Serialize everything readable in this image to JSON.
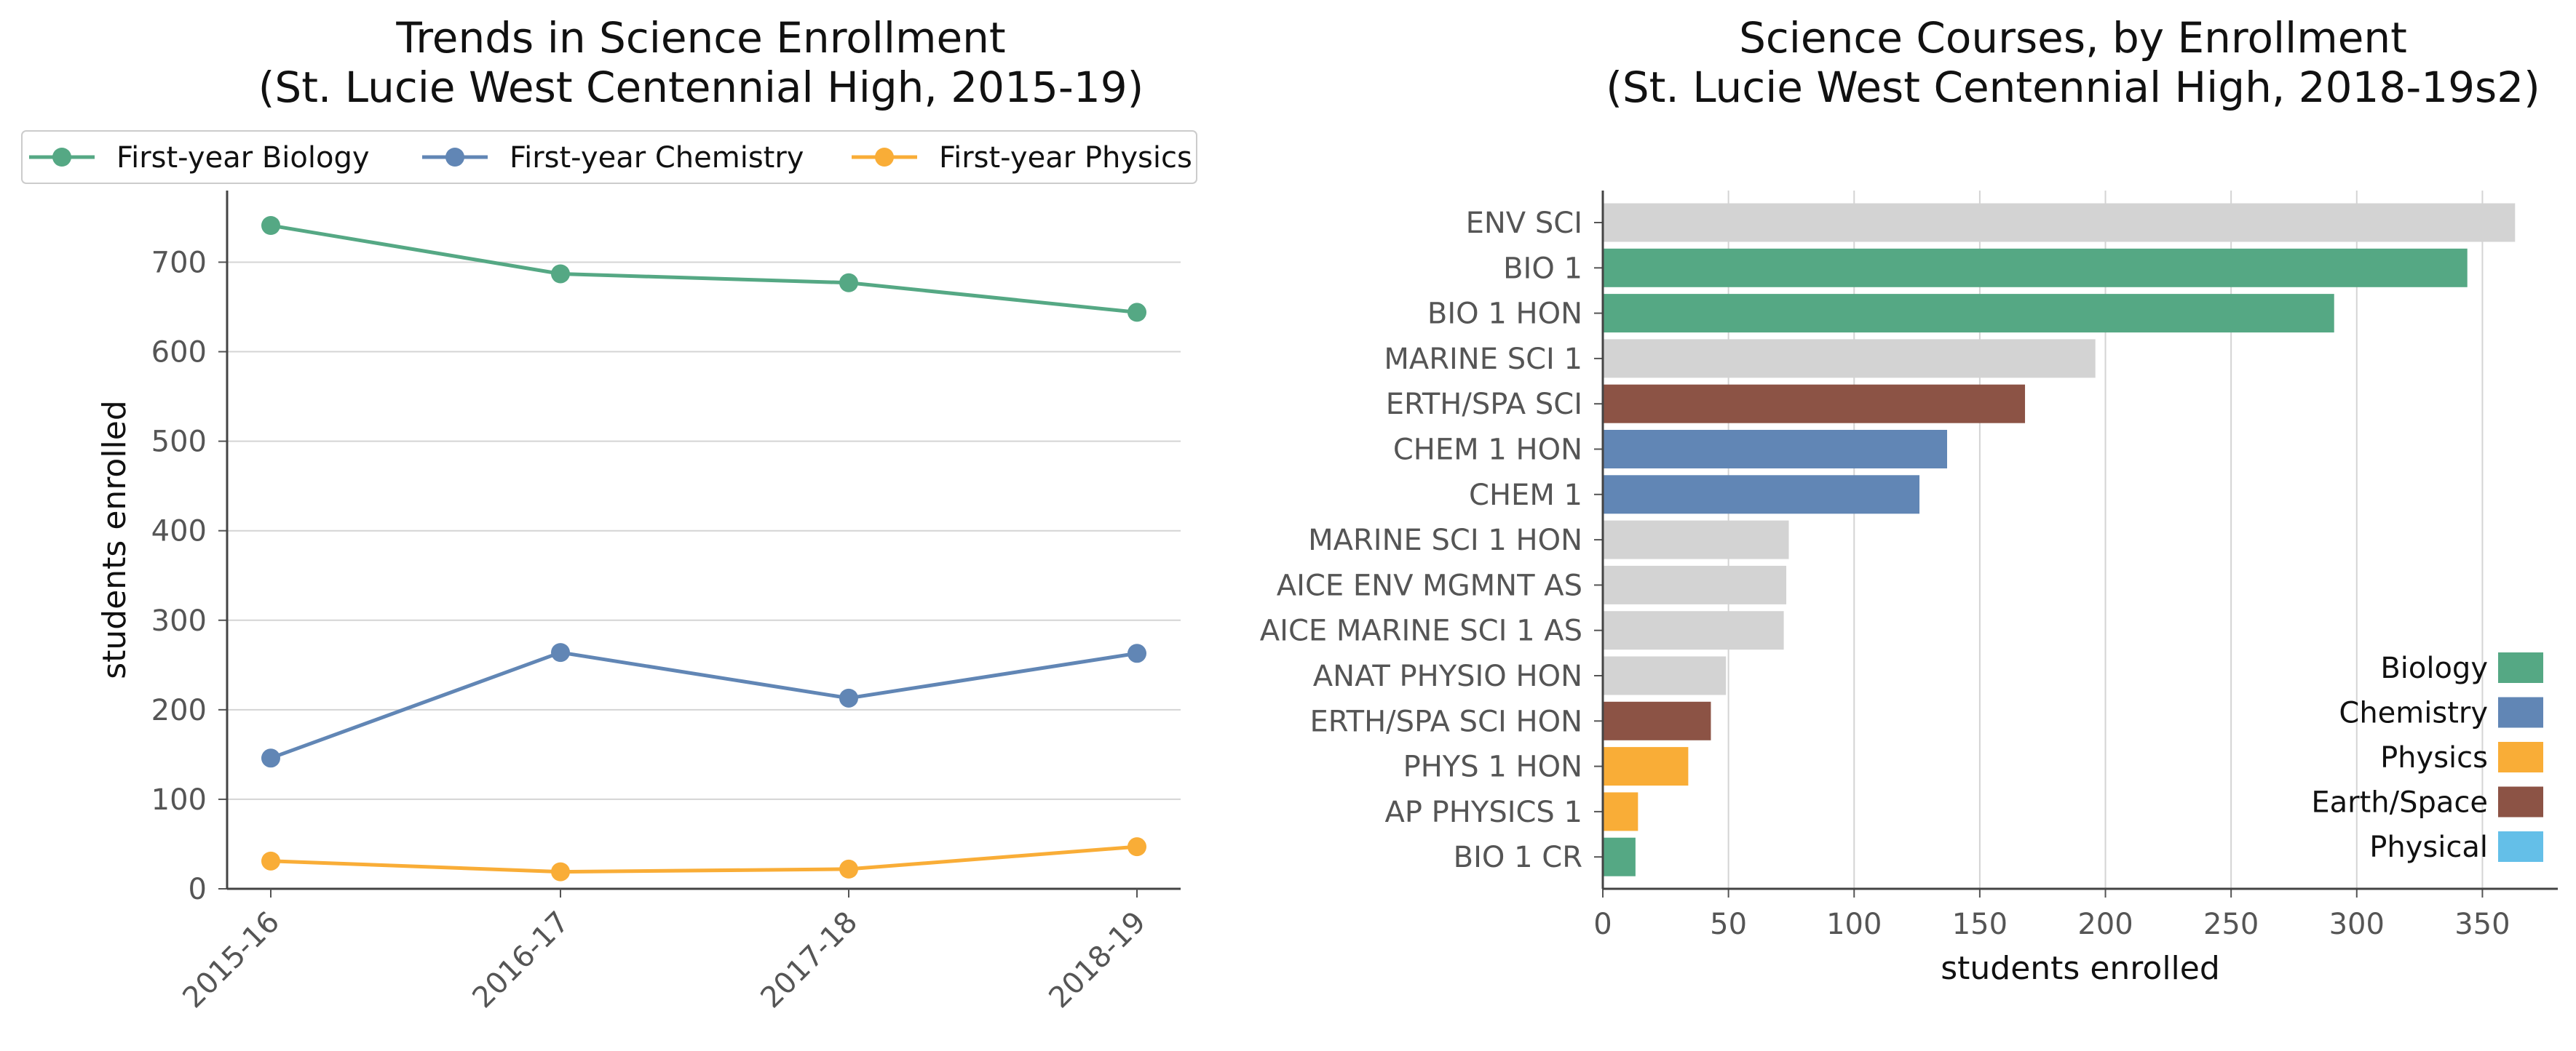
{
  "chart_data": [
    {
      "type": "line",
      "title_lines": [
        "Trends in Science Enrollment",
        "(St. Lucie West Centennial High, 2015-19)"
      ],
      "xlabel": "",
      "ylabel": "students enrolled",
      "categories": [
        "2015-16",
        "2016-17",
        "2017-18",
        "2018-19"
      ],
      "ylim": [
        0,
        780
      ],
      "yticks": [
        0,
        100,
        200,
        300,
        400,
        500,
        600,
        700
      ],
      "grid": true,
      "legend_position": "top",
      "series": [
        {
          "name": "First-year Biology",
          "color": "#55a884",
          "values": [
            741,
            687,
            677,
            644
          ]
        },
        {
          "name": "First-year Chemistry",
          "color": "#6186b5",
          "values": [
            146,
            264,
            213,
            263
          ]
        },
        {
          "name": "First-year Physics",
          "color": "#f9ad37",
          "values": [
            31,
            19,
            22,
            47
          ]
        }
      ]
    },
    {
      "type": "bar",
      "orientation": "horizontal",
      "title_lines": [
        "Science Courses, by Enrollment",
        "(St. Lucie West Centennial High, 2018-19s2)"
      ],
      "xlabel": "students enrolled",
      "ylabel": "",
      "xlim": [
        0,
        380
      ],
      "xticks": [
        0,
        50,
        100,
        150,
        200,
        250,
        300,
        350
      ],
      "grid": true,
      "legend_position": "bottom-right",
      "legend": [
        {
          "name": "Biology",
          "color": "#55a884"
        },
        {
          "name": "Chemistry",
          "color": "#6186b5"
        },
        {
          "name": "Physics",
          "color": "#f9ad37"
        },
        {
          "name": "Earth/Space",
          "color": "#8c5345"
        },
        {
          "name": "Physical",
          "color": "#64bfe8"
        }
      ],
      "other_color": "#d3d3d3",
      "bars": [
        {
          "label": "ENV SCI",
          "value": 363,
          "category": "Other"
        },
        {
          "label": "BIO 1",
          "value": 344,
          "category": "Biology"
        },
        {
          "label": "BIO 1 HON",
          "value": 291,
          "category": "Biology"
        },
        {
          "label": "MARINE SCI 1",
          "value": 196,
          "category": "Other"
        },
        {
          "label": "ERTH/SPA SCI",
          "value": 168,
          "category": "Earth/Space"
        },
        {
          "label": "CHEM 1 HON",
          "value": 137,
          "category": "Chemistry"
        },
        {
          "label": "CHEM 1",
          "value": 126,
          "category": "Chemistry"
        },
        {
          "label": "MARINE SCI 1 HON",
          "value": 74,
          "category": "Other"
        },
        {
          "label": "AICE ENV MGMNT AS",
          "value": 73,
          "category": "Other"
        },
        {
          "label": "AICE MARINE SCI 1 AS",
          "value": 72,
          "category": "Other"
        },
        {
          "label": "ANAT PHYSIO HON",
          "value": 49,
          "category": "Other"
        },
        {
          "label": "ERTH/SPA SCI HON",
          "value": 43,
          "category": "Earth/Space"
        },
        {
          "label": "PHYS 1 HON",
          "value": 34,
          "category": "Physics"
        },
        {
          "label": "AP PHYSICS 1",
          "value": 14,
          "category": "Physics"
        },
        {
          "label": "BIO 1 CR",
          "value": 13,
          "category": "Biology"
        }
      ]
    }
  ]
}
